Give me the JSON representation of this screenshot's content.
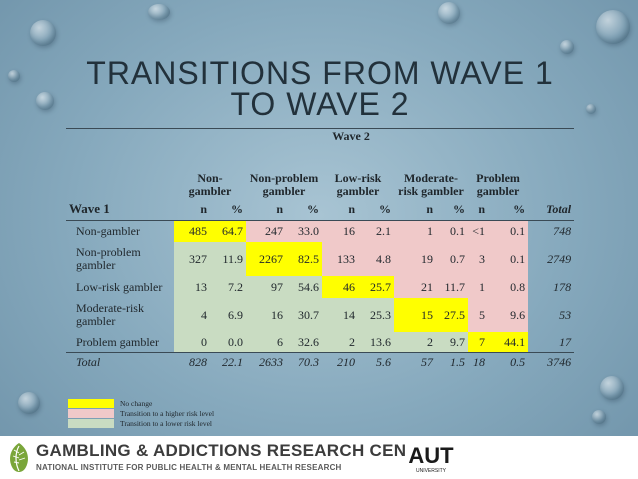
{
  "title": "TRANSITIONS FROM WAVE 1 TO WAVE 2",
  "table": {
    "wave2_label": "Wave 2",
    "groups": [
      "Non-gambler",
      "Non-problem gambler",
      "Low-risk gambler",
      "Moderate-risk gambler",
      "Problem gambler"
    ],
    "wave1_label": "Wave 1",
    "n_label": "n",
    "pct_label": "%",
    "total_label": "Total",
    "rows": [
      {
        "label": "Non-gambler",
        "cells": [
          "485",
          "64.7",
          "247",
          "33.0",
          "16",
          "2.1",
          "1",
          "0.1",
          "<1",
          "0.1"
        ],
        "total": "748"
      },
      {
        "label": "Non-problem gambler",
        "cells": [
          "327",
          "11.9",
          "2267",
          "82.5",
          "133",
          "4.8",
          "19",
          "0.7",
          "3",
          "0.1"
        ],
        "total": "2749"
      },
      {
        "label": "Low-risk gambler",
        "cells": [
          "13",
          "7.2",
          "97",
          "54.6",
          "46",
          "25.7",
          "21",
          "11.7",
          "1",
          "0.8"
        ],
        "total": "178"
      },
      {
        "label": "Moderate-risk gambler",
        "cells": [
          "4",
          "6.9",
          "16",
          "30.7",
          "14",
          "25.3",
          "15",
          "27.5",
          "5",
          "9.6"
        ],
        "total": "53"
      },
      {
        "label": "Problem gambler",
        "cells": [
          "0",
          "0.0",
          "6",
          "32.6",
          "2",
          "13.6",
          "2",
          "9.7",
          "7",
          "44.1"
        ],
        "total": "17"
      },
      {
        "label": "Total",
        "cells": [
          "828",
          "22.1",
          "2633",
          "70.3",
          "210",
          "5.6",
          "57",
          "1.5",
          "18",
          "0.5"
        ],
        "total": "3746"
      }
    ]
  },
  "legend": [
    {
      "label": "No change",
      "color": "#ffff00"
    },
    {
      "label": "Transition to a higher risk level",
      "color": "#f0c9c9"
    },
    {
      "label": "Transition to a lower risk level",
      "color": "#c9dcc2"
    }
  ],
  "footer": {
    "org_name": "GAMBLING & ADDICTIONS RESEARCH CENTRE",
    "org_subtitle": "NATIONAL INSTITUTE FOR PUBLIC HEALTH & MENTAL HEALTH RESEARCH",
    "logo_icon": "leaf-logo-icon",
    "university_logo_text": "AUT",
    "university_logo_subtext": "UNIVERSITY"
  },
  "colors": {
    "no_change": "#ffff00",
    "higher_risk": "#f0c9c9",
    "lower_risk": "#c9dcc2"
  }
}
